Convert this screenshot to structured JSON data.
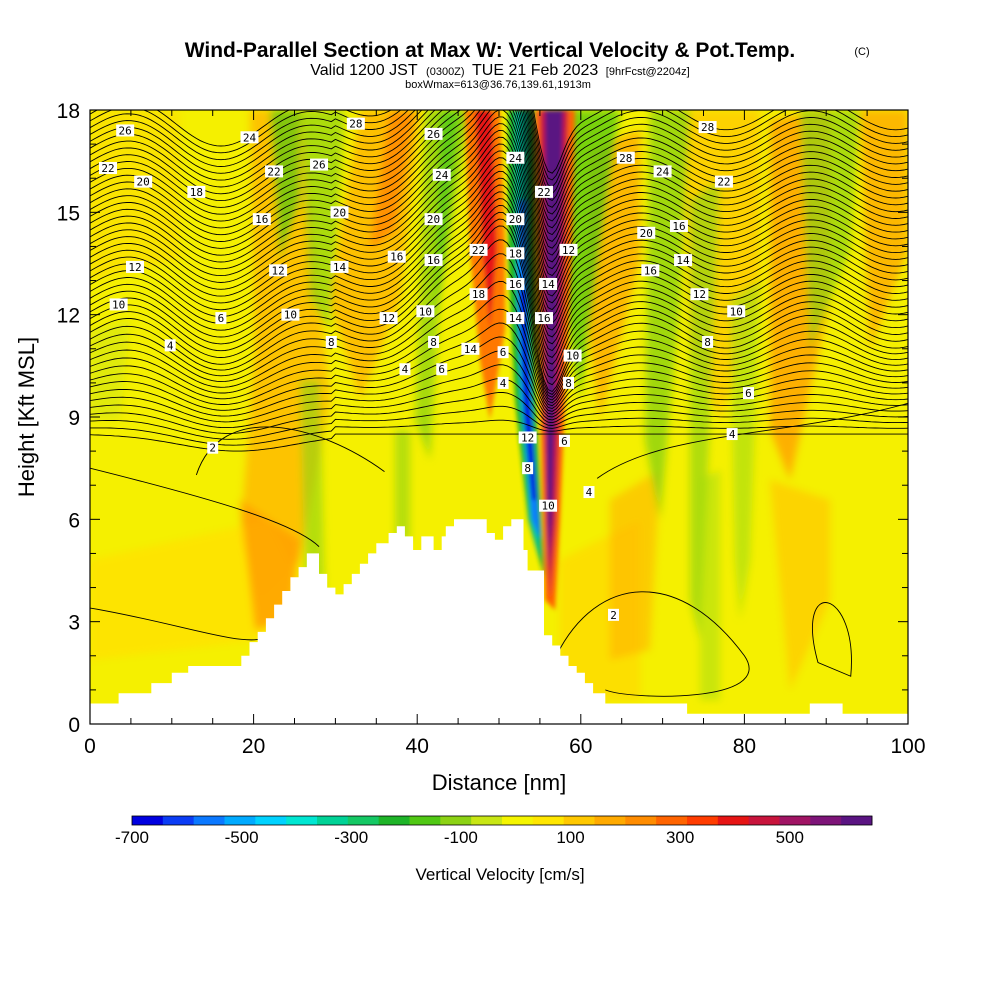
{
  "title": "Wind-Parallel Section at Max W: Vertical Velocity & Pot.Temp.",
  "title_mark": "(C)",
  "subtitle_main": "Valid 1200 JST",
  "subtitle_utc": "(0300Z)",
  "subtitle_date": "TUE 21 Feb 2023",
  "subtitle_fcst": "[9hrFcst@2204z]",
  "subtitle2": "boxWmax=613@36.76,139.61,1913m",
  "colorbar": {
    "title": "Vertical Velocity [cm/s]",
    "tick_labels": [
      "-700",
      "-500",
      "-300",
      "-100",
      "100",
      "300",
      "500"
    ],
    "tick_values": [
      -700,
      -500,
      -300,
      -100,
      100,
      300,
      500
    ],
    "range": [
      -700,
      650
    ],
    "colors": [
      "#0000e0",
      "#0a3cf5",
      "#0a78ff",
      "#00aaff",
      "#00d2ff",
      "#00e6d2",
      "#00d296",
      "#14c864",
      "#1eb428",
      "#50c814",
      "#8cd214",
      "#c8e614",
      "#f5f500",
      "#ffe600",
      "#ffc800",
      "#ffaa00",
      "#ff8c00",
      "#ff6400",
      "#ff3c00",
      "#e61414",
      "#c8143c",
      "#a01464",
      "#7d1478",
      "#5a1482"
    ]
  },
  "chart_data": {
    "type": "heatmap",
    "xlabel": "Distance [nm]",
    "ylabel": "Height [Kft MSL]",
    "xlim": [
      0,
      100
    ],
    "ylim": [
      0,
      18
    ],
    "xticks": [
      0,
      20,
      40,
      60,
      80,
      100
    ],
    "yticks": [
      0,
      3,
      6,
      9,
      12,
      15,
      18
    ],
    "xtick_labels": [
      "0",
      "20",
      "40",
      "60",
      "80",
      "100"
    ],
    "ytick_labels": [
      "0",
      "3",
      "6",
      "9",
      "12",
      "15",
      "18"
    ],
    "terrain_kft": [
      [
        0,
        0.6
      ],
      [
        3.5,
        0.6
      ],
      [
        3.5,
        0.9
      ],
      [
        7.5,
        0.9
      ],
      [
        7.5,
        1.2
      ],
      [
        10,
        1.2
      ],
      [
        10,
        1.5
      ],
      [
        12,
        1.5
      ],
      [
        12,
        1.7
      ],
      [
        18.5,
        1.7
      ],
      [
        18.5,
        2.0
      ],
      [
        19.5,
        2.0
      ],
      [
        19.5,
        2.4
      ],
      [
        20.5,
        2.4
      ],
      [
        20.5,
        2.7
      ],
      [
        21.5,
        2.7
      ],
      [
        21.5,
        3.1
      ],
      [
        22.5,
        3.1
      ],
      [
        22.5,
        3.5
      ],
      [
        23.5,
        3.5
      ],
      [
        23.5,
        3.9
      ],
      [
        24.5,
        3.9
      ],
      [
        24.5,
        4.3
      ],
      [
        25.5,
        4.3
      ],
      [
        25.5,
        4.6
      ],
      [
        26.5,
        4.6
      ],
      [
        26.5,
        5.0
      ],
      [
        28,
        5.0
      ],
      [
        28,
        4.4
      ],
      [
        29,
        4.4
      ],
      [
        29,
        4.0
      ],
      [
        30,
        4.0
      ],
      [
        30,
        3.8
      ],
      [
        31,
        3.8
      ],
      [
        31,
        4.1
      ],
      [
        32,
        4.1
      ],
      [
        32,
        4.4
      ],
      [
        33,
        4.4
      ],
      [
        33,
        4.7
      ],
      [
        34,
        4.7
      ],
      [
        34,
        5.0
      ],
      [
        35,
        5.0
      ],
      [
        35,
        5.3
      ],
      [
        36.5,
        5.3
      ],
      [
        36.5,
        5.6
      ],
      [
        37.5,
        5.6
      ],
      [
        37.5,
        5.8
      ],
      [
        38.5,
        5.8
      ],
      [
        38.5,
        5.5
      ],
      [
        39.5,
        5.5
      ],
      [
        39.5,
        5.1
      ],
      [
        40.5,
        5.1
      ],
      [
        40.5,
        5.5
      ],
      [
        42,
        5.5
      ],
      [
        42,
        5.1
      ],
      [
        43,
        5.1
      ],
      [
        43,
        5.5
      ],
      [
        43.5,
        5.5
      ],
      [
        43.5,
        5.8
      ],
      [
        44.5,
        5.8
      ],
      [
        44.5,
        6.0
      ],
      [
        48.5,
        6.0
      ],
      [
        48.5,
        5.6
      ],
      [
        49.5,
        5.6
      ],
      [
        49.5,
        5.4
      ],
      [
        50.5,
        5.4
      ],
      [
        50.5,
        5.8
      ],
      [
        51.5,
        5.8
      ],
      [
        51.5,
        6.0
      ],
      [
        53,
        6.0
      ],
      [
        53,
        5.1
      ],
      [
        53.5,
        5.1
      ],
      [
        53.5,
        4.5
      ],
      [
        55.5,
        4.5
      ],
      [
        55.5,
        2.6
      ],
      [
        56.5,
        2.6
      ],
      [
        56.5,
        2.3
      ],
      [
        57.5,
        2.3
      ],
      [
        57.5,
        2.0
      ],
      [
        58.5,
        2.0
      ],
      [
        58.5,
        1.7
      ],
      [
        59.5,
        1.7
      ],
      [
        59.5,
        1.5
      ],
      [
        60.5,
        1.5
      ],
      [
        60.5,
        1.2
      ],
      [
        61.5,
        1.2
      ],
      [
        61.5,
        0.9
      ],
      [
        63,
        0.9
      ],
      [
        63,
        0.6
      ],
      [
        73,
        0.6
      ],
      [
        73,
        0.3
      ],
      [
        88,
        0.3
      ],
      [
        88,
        0.6
      ],
      [
        92,
        0.6
      ],
      [
        92,
        0.3
      ],
      [
        100,
        0.3
      ]
    ],
    "contour_labels": [
      {
        "text": "26",
        "x": 4.3,
        "y": 17.4
      },
      {
        "text": "24",
        "x": 19.5,
        "y": 17.2
      },
      {
        "text": "28",
        "x": 32.5,
        "y": 17.6
      },
      {
        "text": "26",
        "x": 42,
        "y": 17.3
      },
      {
        "text": "24",
        "x": 52,
        "y": 16.6
      },
      {
        "text": "28",
        "x": 65.5,
        "y": 16.6
      },
      {
        "text": "28",
        "x": 75.5,
        "y": 17.5
      },
      {
        "text": "22",
        "x": 2.2,
        "y": 16.3
      },
      {
        "text": "20",
        "x": 6.5,
        "y": 15.9
      },
      {
        "text": "18",
        "x": 13,
        "y": 15.6
      },
      {
        "text": "22",
        "x": 22.5,
        "y": 16.2
      },
      {
        "text": "26",
        "x": 28,
        "y": 16.4
      },
      {
        "text": "24",
        "x": 43,
        "y": 16.1
      },
      {
        "text": "22",
        "x": 55.5,
        "y": 15.6
      },
      {
        "text": "24",
        "x": 70,
        "y": 16.2
      },
      {
        "text": "22",
        "x": 77.5,
        "y": 15.9
      },
      {
        "text": "16",
        "x": 21,
        "y": 14.8
      },
      {
        "text": "20",
        "x": 30.5,
        "y": 15.0
      },
      {
        "text": "20",
        "x": 42,
        "y": 14.8
      },
      {
        "text": "20",
        "x": 52,
        "y": 14.8
      },
      {
        "text": "20",
        "x": 68,
        "y": 14.4
      },
      {
        "text": "16",
        "x": 72,
        "y": 14.6
      },
      {
        "text": "12",
        "x": 5.5,
        "y": 13.4
      },
      {
        "text": "12",
        "x": 23,
        "y": 13.3
      },
      {
        "text": "14",
        "x": 30.5,
        "y": 13.4
      },
      {
        "text": "16",
        "x": 37.5,
        "y": 13.7
      },
      {
        "text": "16",
        "x": 42,
        "y": 13.6
      },
      {
        "text": "22",
        "x": 47.5,
        "y": 13.9
      },
      {
        "text": "18",
        "x": 52,
        "y": 13.8
      },
      {
        "text": "12",
        "x": 58.5,
        "y": 13.9
      },
      {
        "text": "16",
        "x": 68.5,
        "y": 13.3
      },
      {
        "text": "14",
        "x": 72.5,
        "y": 13.6
      },
      {
        "text": "10",
        "x": 3.5,
        "y": 12.3
      },
      {
        "text": "14",
        "x": 56,
        "y": 12.9
      },
      {
        "text": "16",
        "x": 52,
        "y": 12.9
      },
      {
        "text": "18",
        "x": 47.5,
        "y": 12.6
      },
      {
        "text": "12",
        "x": 74.5,
        "y": 12.6
      },
      {
        "text": "10",
        "x": 79,
        "y": 12.1
      },
      {
        "text": "6",
        "x": 16,
        "y": 11.9
      },
      {
        "text": "10",
        "x": 24.5,
        "y": 12.0
      },
      {
        "text": "12",
        "x": 36.5,
        "y": 11.9
      },
      {
        "text": "10",
        "x": 41,
        "y": 12.1
      },
      {
        "text": "14",
        "x": 52,
        "y": 11.9
      },
      {
        "text": "16",
        "x": 55.5,
        "y": 11.9
      },
      {
        "text": "4",
        "x": 9.8,
        "y": 11.1
      },
      {
        "text": "8",
        "x": 29.5,
        "y": 11.2
      },
      {
        "text": "8",
        "x": 42,
        "y": 11.2
      },
      {
        "text": "14",
        "x": 46.5,
        "y": 11.0
      },
      {
        "text": "6",
        "x": 50.5,
        "y": 10.9
      },
      {
        "text": "10",
        "x": 59,
        "y": 10.8
      },
      {
        "text": "8",
        "x": 75.5,
        "y": 11.2
      },
      {
        "text": "4",
        "x": 38.5,
        "y": 10.4
      },
      {
        "text": "6",
        "x": 43,
        "y": 10.4
      },
      {
        "text": "4",
        "x": 50.5,
        "y": 10.0
      },
      {
        "text": "8",
        "x": 58.5,
        "y": 10.0
      },
      {
        "text": "6",
        "x": 80.5,
        "y": 9.7
      },
      {
        "text": "2",
        "x": 15,
        "y": 8.1
      },
      {
        "text": "12",
        "x": 53.5,
        "y": 8.4
      },
      {
        "text": "6",
        "x": 58,
        "y": 8.3
      },
      {
        "text": "4",
        "x": 78.5,
        "y": 8.5
      },
      {
        "text": "8",
        "x": 53.5,
        "y": 7.5
      },
      {
        "text": "4",
        "x": 61,
        "y": 6.8
      },
      {
        "text": "10",
        "x": 56,
        "y": 6.4
      },
      {
        "text": "2",
        "x": 64,
        "y": 3.2
      }
    ]
  }
}
